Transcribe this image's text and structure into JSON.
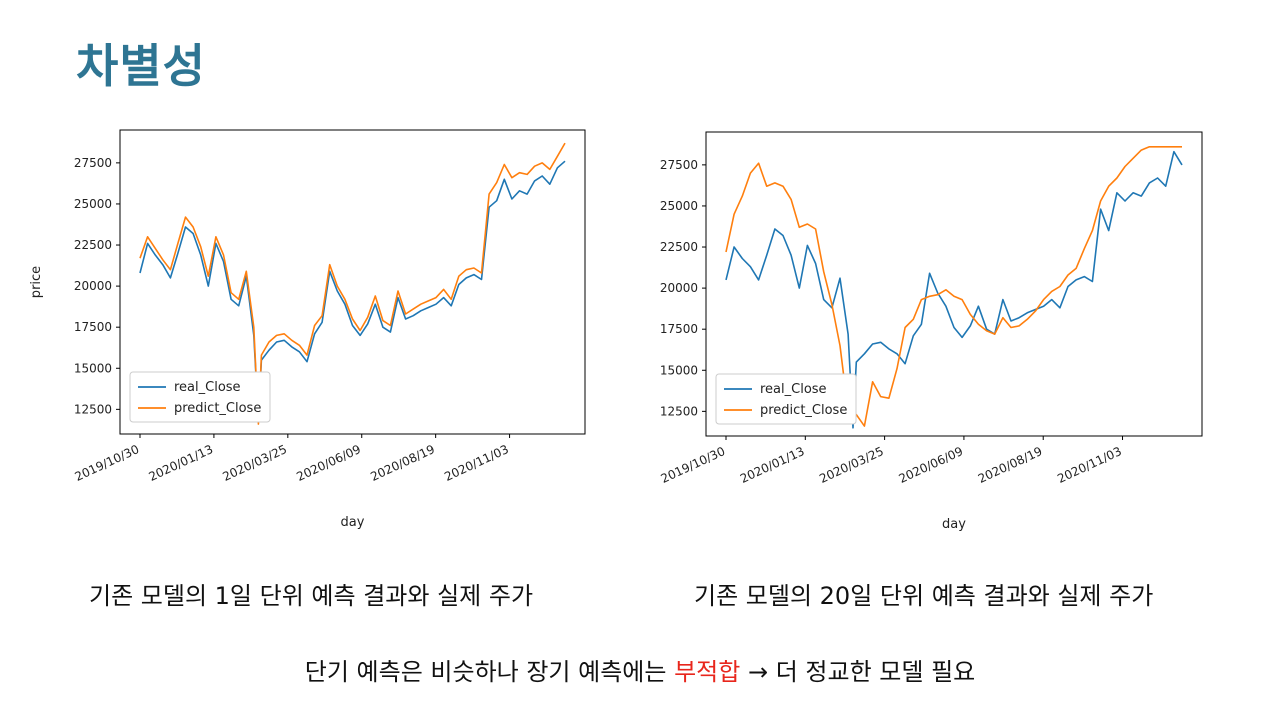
{
  "slide": {
    "title": "차별성",
    "caption_left": "기존 모델의 1일 단위 예측 결과와 실제 주가",
    "caption_right": "기존 모델의 20일 단위 예측 결과와 실제 주가",
    "note_prefix": "단기 예측은 비슷하나 장기 예측에는 ",
    "note_highlight": "부적합",
    "note_suffix": " → 더 정교한 모델 필요",
    "colors": {
      "title": "#2e7593",
      "highlight": "#e8261c",
      "real": "#1f77b4",
      "predict": "#ff7f0e"
    }
  },
  "chart_data": [
    {
      "type": "line",
      "xlabel": "day",
      "ylabel": "price",
      "ylim": [
        11000,
        29500
      ],
      "yticks": [
        12500,
        15000,
        17500,
        20000,
        22500,
        25000,
        27500
      ],
      "xticks": [
        "2019/10/30",
        "2020/01/13",
        "2020/03/25",
        "2020/06/09",
        "2020/08/19",
        "2020/11/03"
      ],
      "legend": "lower-left",
      "x": [
        0,
        5,
        10,
        15,
        20,
        25,
        30,
        35,
        40,
        45,
        50,
        55,
        60,
        65,
        70,
        75,
        78,
        80,
        85,
        90,
        95,
        100,
        105,
        110,
        115,
        120,
        125,
        130,
        135,
        140,
        145,
        150,
        155,
        160,
        165,
        170,
        175,
        180,
        185,
        190,
        195,
        200,
        205,
        210,
        215,
        220,
        225,
        230,
        235,
        240,
        245,
        250,
        255,
        260,
        265,
        270,
        275,
        280
      ],
      "series": [
        {
          "name": "real_Close",
          "values": [
            20800,
            22600,
            21900,
            21300,
            20500,
            22000,
            23600,
            23200,
            21900,
            20000,
            22600,
            21500,
            19200,
            18800,
            20600,
            17000,
            11800,
            15500,
            16100,
            16600,
            16700,
            16300,
            16000,
            15400,
            17100,
            17800,
            20900,
            19700,
            18900,
            17600,
            17000,
            17700,
            18900,
            17500,
            17200,
            19300,
            18000,
            18200,
            18500,
            18700,
            18900,
            19300,
            18800,
            20100,
            20500,
            20700,
            20400,
            24800,
            25200,
            26500,
            25300,
            25800,
            25600,
            26400,
            26700,
            26200,
            27200,
            27600
          ]
        },
        {
          "name": "predict_Close",
          "values": [
            21700,
            23000,
            22300,
            21600,
            21000,
            22600,
            24200,
            23600,
            22400,
            20600,
            23000,
            21900,
            19600,
            19200,
            20900,
            17500,
            11600,
            15800,
            16600,
            17000,
            17100,
            16700,
            16400,
            15800,
            17600,
            18200,
            21300,
            20000,
            19200,
            18000,
            17300,
            18100,
            19400,
            17900,
            17600,
            19700,
            18300,
            18600,
            18900,
            19100,
            19300,
            19800,
            19200,
            20600,
            21000,
            21100,
            20800,
            25600,
            26300,
            27400,
            26600,
            26900,
            26800,
            27300,
            27500,
            27100,
            27900,
            28700
          ]
        }
      ]
    },
    {
      "type": "line",
      "xlabel": "day",
      "ylabel": "price",
      "ylim": [
        11000,
        29500
      ],
      "yticks": [
        12500,
        15000,
        17500,
        20000,
        22500,
        25000,
        27500
      ],
      "xticks": [
        "2019/10/30",
        "2020/01/13",
        "2020/03/25",
        "2020/06/09",
        "2020/08/19",
        "2020/11/03"
      ],
      "legend": "lower-left",
      "x": [
        0,
        5,
        10,
        15,
        20,
        25,
        30,
        35,
        40,
        45,
        50,
        55,
        60,
        65,
        70,
        75,
        78,
        80,
        85,
        90,
        95,
        100,
        105,
        110,
        115,
        120,
        125,
        130,
        135,
        140,
        145,
        150,
        155,
        160,
        165,
        170,
        175,
        180,
        185,
        190,
        195,
        200,
        205,
        210,
        215,
        220,
        225,
        230,
        235,
        240,
        245,
        250,
        255,
        260,
        265,
        270,
        275,
        280
      ],
      "series": [
        {
          "name": "real_Close",
          "values": [
            20500,
            22500,
            21800,
            21300,
            20500,
            22000,
            23600,
            23200,
            22000,
            20000,
            22600,
            21500,
            19300,
            18800,
            20600,
            17200,
            11500,
            15500,
            16000,
            16600,
            16700,
            16300,
            16000,
            15400,
            17100,
            17800,
            20900,
            19700,
            18900,
            17600,
            17000,
            17700,
            18900,
            17500,
            17200,
            19300,
            18000,
            18200,
            18500,
            18700,
            18900,
            19300,
            18800,
            20100,
            20500,
            20700,
            20400,
            24800,
            23500,
            25800,
            25300,
            25800,
            25600,
            26400,
            26700,
            26200,
            28300,
            27500
          ]
        },
        {
          "name": "predict_Close",
          "values": [
            22200,
            24500,
            25600,
            27000,
            27600,
            26200,
            26400,
            26200,
            25400,
            23700,
            23900,
            23600,
            21000,
            19000,
            16500,
            12500,
            12500,
            12300,
            11600,
            14300,
            13400,
            13300,
            15100,
            17600,
            18100,
            19300,
            19500,
            19600,
            19900,
            19500,
            19300,
            18400,
            17800,
            17400,
            17200,
            18200,
            17600,
            17700,
            18100,
            18600,
            19300,
            19800,
            20100,
            20800,
            21200,
            22400,
            23500,
            25300,
            26200,
            26700,
            27400,
            27900,
            28400,
            28600,
            28600,
            28600,
            28600,
            28600
          ]
        }
      ]
    }
  ]
}
